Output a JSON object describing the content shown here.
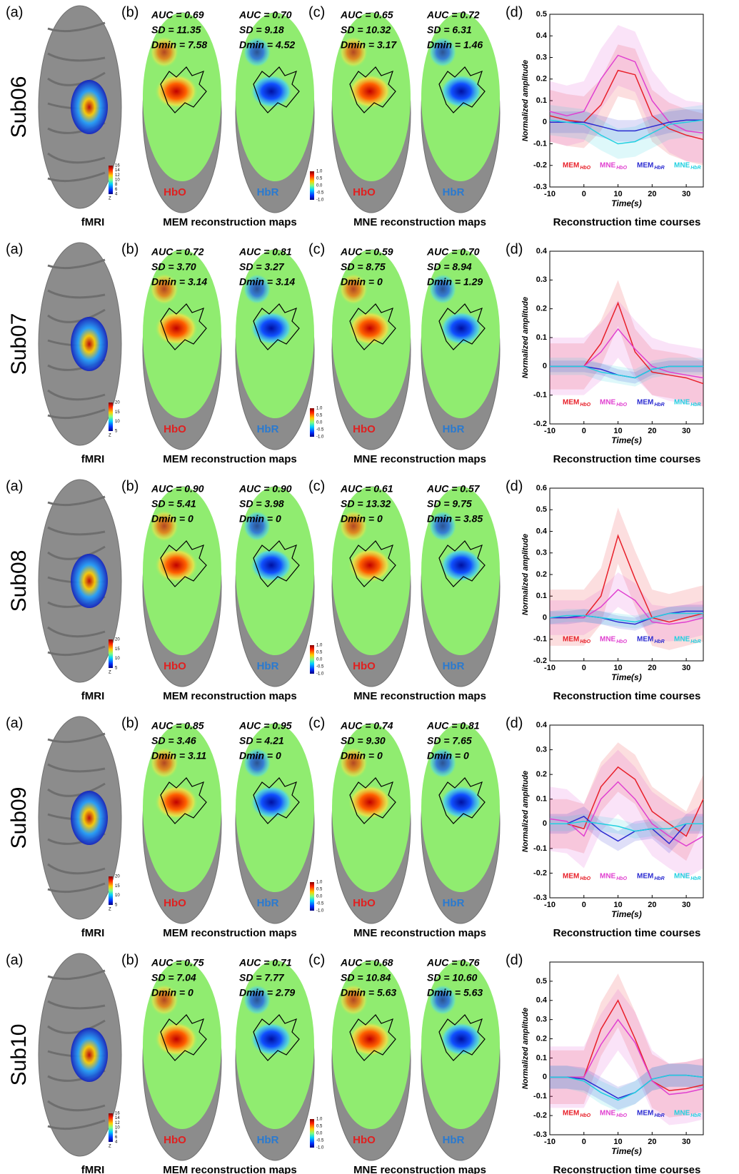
{
  "labels": {
    "a": "(a)",
    "b": "(b)",
    "c": "(c)",
    "d": "(d)",
    "fmri": "fMRI",
    "mem_maps": "MEM reconstruction maps",
    "mne_maps": "MNE reconstruction maps",
    "time_courses": "Reconstruction time courses",
    "hbo": "HbO",
    "hbr": "HbR",
    "z": "Z"
  },
  "recon_colorbar_ticks": [
    {
      "value": 1,
      "label": "1.0"
    },
    {
      "value": 0.5,
      "label": "0.5"
    },
    {
      "value": 0,
      "label": "0.0"
    },
    {
      "value": -0.5,
      "label": "-0.5"
    },
    {
      "value": -1,
      "label": "-1.0"
    }
  ],
  "rows": [
    {
      "subject": "Sub06",
      "fmri_colorbar_ticks": [
        16,
        14,
        12,
        10,
        8,
        6,
        4
      ],
      "stats": [
        [
          "AUC = 0.69",
          "SD = 11.35",
          "Dmin = 7.58"
        ],
        [
          "AUC = 0.70",
          "SD = 9.18",
          "Dmin = 4.52"
        ],
        [
          "AUC = 0.65",
          "SD = 10.32",
          "Dmin = 3.17"
        ],
        [
          "AUC = 0.72",
          "SD = 6.31",
          "Dmin = 1.46"
        ]
      ],
      "chart": {
        "type": "line",
        "ylabel": "Normalized amplitude",
        "xlabel": "Time(s)",
        "x": [
          -10,
          -5,
          0,
          5,
          10,
          15,
          20,
          25,
          30,
          35
        ],
        "xlim": [
          -10,
          35
        ],
        "xticks": [
          -10,
          0,
          10,
          20,
          30
        ],
        "ylim": [
          -0.3,
          0.5
        ],
        "yticks": [
          -0.3,
          -0.2,
          -0.1,
          0,
          0.1,
          0.2,
          0.3,
          0.4,
          0.5
        ],
        "series": [
          {
            "name": "MEM",
            "subscript": "HbO",
            "color": "#e8202a",
            "spread": 0.12,
            "values": [
              0.03,
              0.01,
              0,
              0.08,
              0.24,
              0.22,
              0.03,
              -0.03,
              -0.06,
              -0.08
            ]
          },
          {
            "name": "MNE",
            "subscript": "HbO",
            "color": "#e040d0",
            "spread": 0.14,
            "values": [
              0.05,
              0.03,
              0.05,
              0.2,
              0.31,
              0.28,
              0.1,
              0,
              -0.04,
              -0.05
            ]
          },
          {
            "name": "MEM",
            "subscript": "HbR",
            "color": "#2a2ad0",
            "spread": 0.05,
            "values": [
              0,
              0,
              0,
              -0.02,
              -0.04,
              -0.04,
              -0.02,
              0,
              0.01,
              0.01
            ]
          },
          {
            "name": "MNE",
            "subscript": "HbR",
            "color": "#22d0e0",
            "spread": 0.07,
            "values": [
              0.01,
              0,
              -0.01,
              -0.06,
              -0.1,
              -0.09,
              -0.05,
              -0.01,
              0,
              0.01
            ]
          }
        ]
      }
    },
    {
      "subject": "Sub07",
      "fmri_colorbar_ticks": [
        20,
        15,
        10,
        5
      ],
      "stats": [
        [
          "AUC = 0.72",
          "SD = 3.70",
          "Dmin = 3.14"
        ],
        [
          "AUC = 0.81",
          "SD = 3.27",
          "Dmin = 3.14"
        ],
        [
          "AUC = 0.59",
          "SD = 8.75",
          "Dmin = 0"
        ],
        [
          "AUC = 0.70",
          "SD = 8.94",
          "Dmin = 1.29"
        ]
      ],
      "chart": {
        "type": "line",
        "ylabel": "Normalized amplitude",
        "xlabel": "Time(s)",
        "x": [
          -10,
          -5,
          0,
          5,
          10,
          15,
          20,
          25,
          30,
          35
        ],
        "xlim": [
          -10,
          35
        ],
        "xticks": [
          -10,
          0,
          10,
          20,
          30
        ],
        "ylim": [
          -0.2,
          0.4
        ],
        "yticks": [
          -0.2,
          -0.1,
          0,
          0.1,
          0.2,
          0.3,
          0.4
        ],
        "series": [
          {
            "name": "MEM",
            "subscript": "HbO",
            "color": "#e8202a",
            "spread": 0.08,
            "values": [
              0,
              0,
              0,
              0.08,
              0.22,
              0.05,
              -0.02,
              -0.03,
              -0.04,
              -0.06
            ]
          },
          {
            "name": "MNE",
            "subscript": "HbO",
            "color": "#e040d0",
            "spread": 0.1,
            "values": [
              0,
              0,
              0,
              0.05,
              0.13,
              0.06,
              0,
              -0.02,
              -0.03,
              -0.04
            ]
          },
          {
            "name": "MEM",
            "subscript": "HbR",
            "color": "#2a2ad0",
            "spread": 0.02,
            "values": [
              0,
              0,
              0,
              -0.01,
              -0.03,
              -0.04,
              -0.01,
              0,
              0,
              0
            ]
          },
          {
            "name": "MNE",
            "subscript": "HbR",
            "color": "#22d0e0",
            "spread": 0.03,
            "values": [
              0,
              0,
              0,
              -0.02,
              -0.03,
              -0.04,
              -0.01,
              0,
              0,
              0
            ]
          }
        ]
      }
    },
    {
      "subject": "Sub08",
      "fmri_colorbar_ticks": [
        20,
        15,
        10,
        5
      ],
      "stats": [
        [
          "AUC = 0.90",
          "SD = 5.41",
          "Dmin = 0"
        ],
        [
          "AUC = 0.90",
          "SD = 3.98",
          "Dmin = 0"
        ],
        [
          "AUC = 0.61",
          "SD = 13.32",
          "Dmin = 0"
        ],
        [
          "AUC = 0.57",
          "SD = 9.75",
          "Dmin = 3.85"
        ]
      ],
      "chart": {
        "type": "line",
        "ylabel": "Normalized amplitude",
        "xlabel": "Time(s)",
        "x": [
          -10,
          -5,
          0,
          5,
          10,
          15,
          20,
          25,
          30,
          35
        ],
        "xlim": [
          -10,
          35
        ],
        "xticks": [
          -10,
          0,
          10,
          20,
          30
        ],
        "ylim": [
          -0.2,
          0.6
        ],
        "yticks": [
          -0.2,
          -0.1,
          0,
          0.1,
          0.2,
          0.3,
          0.4,
          0.5,
          0.6
        ],
        "series": [
          {
            "name": "MEM",
            "subscript": "HbO",
            "color": "#e8202a",
            "spread": 0.13,
            "values": [
              0,
              0,
              0,
              0.1,
              0.38,
              0.18,
              0,
              -0.02,
              0,
              0.02
            ]
          },
          {
            "name": "MNE",
            "subscript": "HbO",
            "color": "#e040d0",
            "spread": 0.08,
            "values": [
              0,
              0,
              0,
              0.05,
              0.13,
              0.08,
              -0.02,
              -0.03,
              -0.02,
              0
            ]
          },
          {
            "name": "MEM",
            "subscript": "HbR",
            "color": "#2a2ad0",
            "spread": 0.03,
            "values": [
              0,
              0,
              0.01,
              0,
              -0.02,
              -0.03,
              0,
              0.02,
              0.03,
              0.03
            ]
          },
          {
            "name": "MNE",
            "subscript": "HbR",
            "color": "#22d0e0",
            "spread": 0.03,
            "values": [
              0,
              0.01,
              0.01,
              0,
              -0.01,
              -0.02,
              0,
              0.02,
              0.02,
              0.02
            ]
          }
        ]
      }
    },
    {
      "subject": "Sub09",
      "fmri_colorbar_ticks": [
        20,
        15,
        10,
        5
      ],
      "stats": [
        [
          "AUC = 0.85",
          "SD = 3.46",
          "Dmin = 3.11"
        ],
        [
          "AUC = 0.95",
          "SD = 4.21",
          "Dmin = 0"
        ],
        [
          "AUC = 0.74",
          "SD = 9.30",
          "Dmin = 0"
        ],
        [
          "AUC = 0.81",
          "SD = 7.65",
          "Dmin = 0"
        ]
      ],
      "chart": {
        "type": "line",
        "ylabel": "Normalized amplitude",
        "xlabel": "Time(s)",
        "x": [
          -10,
          -5,
          0,
          5,
          10,
          15,
          20,
          25,
          30,
          35
        ],
        "xlim": [
          -10,
          35
        ],
        "xticks": [
          -10,
          0,
          10,
          20,
          30
        ],
        "ylim": [
          -0.3,
          0.4
        ],
        "yticks": [
          -0.3,
          -0.2,
          -0.1,
          0,
          0.1,
          0.2,
          0.3,
          0.4
        ],
        "series": [
          {
            "name": "MEM",
            "subscript": "HbO",
            "color": "#e8202a",
            "spread": 0.1,
            "values": [
              0,
              0,
              -0.02,
              0.15,
              0.23,
              0.18,
              0.05,
              0,
              -0.05,
              0.1
            ]
          },
          {
            "name": "MNE",
            "subscript": "HbO",
            "color": "#e040d0",
            "spread": 0.13,
            "values": [
              0.02,
              0.01,
              -0.05,
              0.1,
              0.17,
              0.1,
              0,
              -0.05,
              -0.09,
              -0.05
            ]
          },
          {
            "name": "MEM",
            "subscript": "HbR",
            "color": "#2a2ad0",
            "spread": 0.04,
            "values": [
              0,
              0,
              0.03,
              -0.03,
              -0.07,
              -0.03,
              -0.02,
              -0.08,
              0,
              0
            ]
          },
          {
            "name": "MNE",
            "subscript": "HbR",
            "color": "#22d0e0",
            "spread": 0.03,
            "values": [
              0,
              0,
              0.01,
              0,
              -0.01,
              -0.03,
              -0.02,
              -0.02,
              0,
              0
            ]
          }
        ]
      }
    },
    {
      "subject": "Sub10",
      "fmri_colorbar_ticks": [
        16,
        14,
        12,
        10,
        8,
        6,
        4
      ],
      "stats": [
        [
          "AUC = 0.75",
          "SD = 7.04",
          "Dmin = 0"
        ],
        [
          "AUC = 0.71",
          "SD = 7.77",
          "Dmin = 2.79"
        ],
        [
          "AUC = 0.68",
          "SD = 10.84",
          "Dmin = 5.63"
        ],
        [
          "AUC = 0.76",
          "SD = 10.60",
          "Dmin = 5.63"
        ]
      ],
      "chart": {
        "type": "line",
        "ylabel": "Normalized amplitude",
        "xlabel": "Time(s)",
        "x": [
          -10,
          -5,
          0,
          5,
          10,
          15,
          20,
          25,
          30,
          35
        ],
        "xlim": [
          -10,
          35
        ],
        "xticks": [
          -10,
          0,
          10,
          20,
          30
        ],
        "ylim": [
          -0.3,
          0.6
        ],
        "yticks": [
          -0.3,
          -0.2,
          -0.1,
          0,
          0.1,
          0.2,
          0.3,
          0.4,
          0.5
        ],
        "series": [
          {
            "name": "MEM",
            "subscript": "HbO",
            "color": "#e8202a",
            "spread": 0.14,
            "values": [
              0,
              0,
              0,
              0.25,
              0.4,
              0.2,
              -0.02,
              -0.07,
              -0.06,
              -0.04
            ]
          },
          {
            "name": "MNE",
            "subscript": "HbO",
            "color": "#e040d0",
            "spread": 0.16,
            "values": [
              0,
              0,
              0,
              0.17,
              0.3,
              0.18,
              -0.02,
              -0.09,
              -0.08,
              -0.06
            ]
          },
          {
            "name": "MEM",
            "subscript": "HbR",
            "color": "#2a2ad0",
            "spread": 0.06,
            "values": [
              0,
              0,
              -0.01,
              -0.06,
              -0.11,
              -0.08,
              -0.01,
              0.01,
              0.01,
              0
            ]
          },
          {
            "name": "MNE",
            "subscript": "HbR",
            "color": "#22d0e0",
            "spread": 0.06,
            "values": [
              0,
              0,
              -0.02,
              -0.08,
              -0.12,
              -0.08,
              -0.01,
              0.01,
              0.01,
              0
            ]
          }
        ]
      }
    }
  ]
}
